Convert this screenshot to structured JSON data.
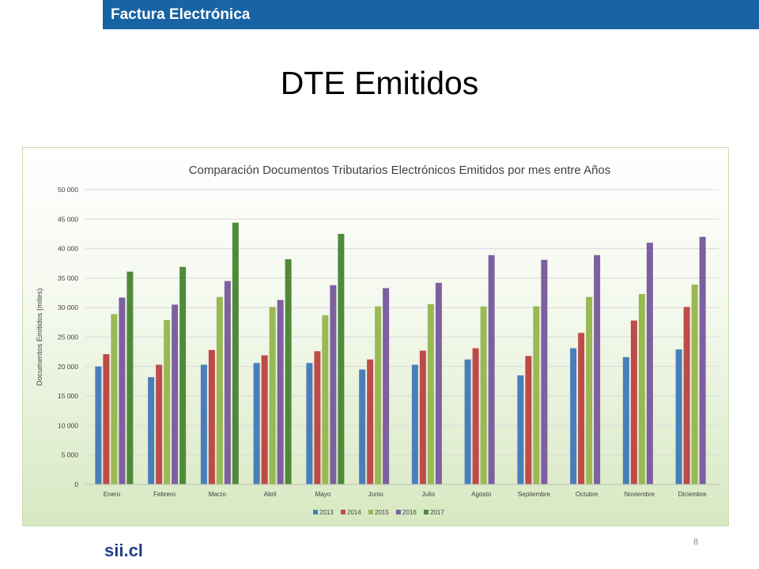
{
  "header": {
    "title": "Factura Electrónica"
  },
  "slide": {
    "title": "DTE Emitidos",
    "page_number": "8",
    "logo_text": "sii.cl"
  },
  "chart_data": {
    "type": "bar",
    "title": "Comparación Documentos Tributarios Electrónicos Emitidos por mes entre Años",
    "xlabel": "",
    "ylabel": "Documentos Emitidos (miles)",
    "ylim": [
      0,
      50000
    ],
    "yticks": [
      0,
      5000,
      10000,
      15000,
      20000,
      25000,
      30000,
      35000,
      40000,
      45000,
      50000
    ],
    "ytick_labels": [
      "0",
      "5 000",
      "10 000",
      "15 000",
      "20 000",
      "25 000",
      "30 000",
      "35 000",
      "40 000",
      "45 000",
      "50 000"
    ],
    "grid": true,
    "legend_position": "bottom",
    "categories": [
      "Enero",
      "Febrero",
      "Marzo",
      "Abril",
      "Mayo",
      "Junio",
      "Julio",
      "Agosto",
      "Septiembre",
      "Octubre",
      "Noviembre",
      "Diciembre"
    ],
    "series": [
      {
        "name": "2013",
        "color": "#4a7ebb",
        "values": [
          20000,
          18200,
          20300,
          20600,
          20600,
          19500,
          20300,
          21200,
          18500,
          23100,
          21600,
          22900
        ]
      },
      {
        "name": "2014",
        "color": "#be4b48",
        "values": [
          22100,
          20300,
          22800,
          21900,
          22600,
          21200,
          22700,
          23100,
          21800,
          25700,
          27800,
          30100
        ]
      },
      {
        "name": "2015",
        "color": "#98b954",
        "values": [
          28900,
          27900,
          31800,
          30100,
          28700,
          30200,
          30600,
          30200,
          30200,
          31800,
          32300,
          33900
        ]
      },
      {
        "name": "2016",
        "color": "#7d60a0",
        "values": [
          31700,
          30500,
          34500,
          31300,
          33800,
          33300,
          34200,
          38900,
          38100,
          38900,
          41000,
          42000
        ]
      },
      {
        "name": "2017",
        "color": "#4f8a3a",
        "values": [
          36100,
          36900,
          44400,
          38200,
          42500,
          null,
          null,
          null,
          null,
          null,
          null,
          null
        ]
      }
    ]
  }
}
